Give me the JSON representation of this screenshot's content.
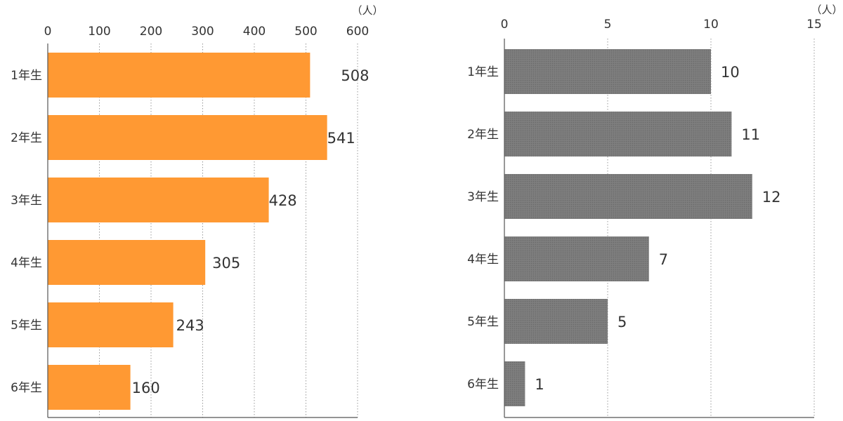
{
  "chart_data": [
    {
      "type": "bar",
      "orientation": "horizontal",
      "categories": [
        "1年生",
        "2年生",
        "3年生",
        "4年生",
        "5年生",
        "6年生"
      ],
      "values": [
        508,
        541,
        428,
        305,
        243,
        160
      ],
      "unit": "（人）",
      "xlim": [
        0,
        600
      ],
      "xticks": [
        0,
        100,
        200,
        300,
        400,
        500,
        600
      ],
      "bar_color": "#ff9933",
      "grid": true
    },
    {
      "type": "bar",
      "orientation": "horizontal",
      "categories": [
        "1年生",
        "2年生",
        "3年生",
        "4年生",
        "5年生",
        "6年生"
      ],
      "values": [
        10,
        11,
        12,
        7,
        5,
        1
      ],
      "unit": "（人）",
      "xlim": [
        0,
        15
      ],
      "xticks": [
        0,
        5,
        10,
        15
      ],
      "bar_color": "#7a7a7a",
      "grid": true
    }
  ]
}
